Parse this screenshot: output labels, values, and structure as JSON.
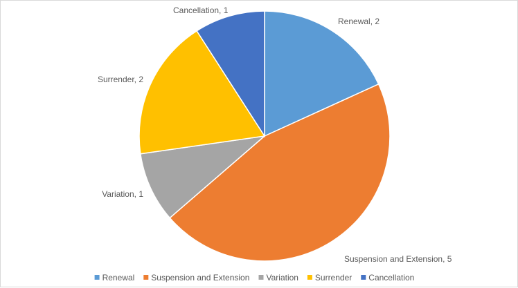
{
  "chart_data": {
    "type": "pie",
    "categories": [
      "Renewal",
      "Suspension and Extension",
      "Variation",
      "Surrender",
      "Cancellation"
    ],
    "values": [
      2,
      5,
      1,
      2,
      1
    ],
    "colors": [
      "#5b9bd5",
      "#ed7d31",
      "#a5a5a5",
      "#ffc000",
      "#4472c4"
    ],
    "data_labels": [
      "Renewal, 2",
      "Suspension and Extension, 5",
      "Variation, 1",
      "Surrender, 2",
      "Cancellation, 1"
    ],
    "start_angle": "12 o'clock",
    "direction": "clockwise",
    "legend_position": "bottom",
    "title": ""
  }
}
